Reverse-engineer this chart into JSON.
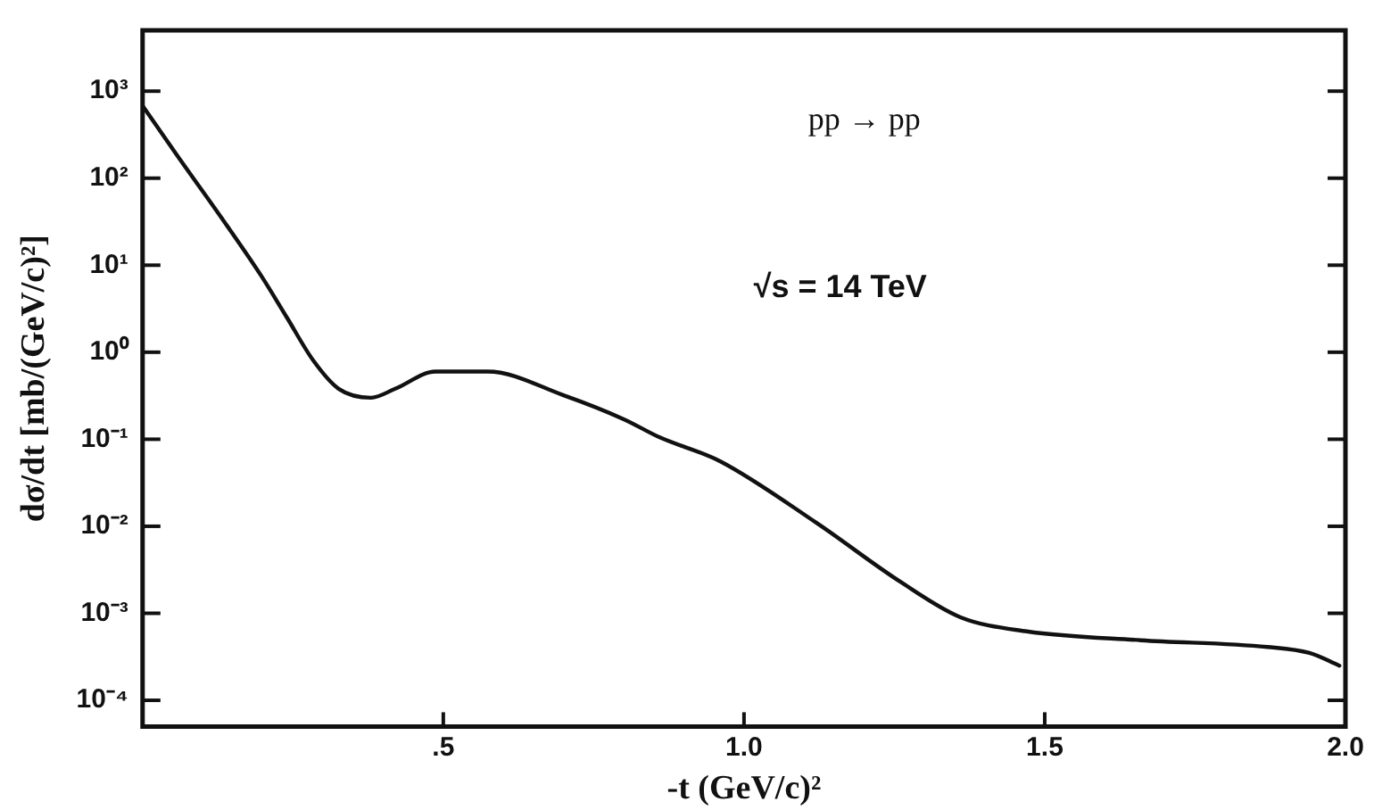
{
  "chart_data": {
    "type": "line",
    "xlabel": "-t (GeV/c)²",
    "ylabel": "dσ/dt [mb/(GeV/c)²]",
    "annotations": [
      "pp → pp",
      "√s = 14 TeV"
    ],
    "x": [
      0,
      0.058,
      0.13,
      0.197,
      0.24,
      0.284,
      0.326,
      0.38,
      0.42,
      0.487,
      0.574,
      0.7,
      0.8,
      0.86,
      0.96,
      1.12,
      1.26,
      1.36,
      1.47,
      1.66,
      1.87,
      1.94,
      1.99
    ],
    "series": [
      {
        "color": "#111111",
        "values": [
          680,
          180,
          36,
          7.6,
          2.5,
          0.8,
          0.38,
          0.3,
          0.38,
          0.6,
          0.6,
          0.32,
          0.17,
          0.105,
          0.056,
          0.011,
          0.0023,
          0.0009,
          0.00062,
          0.00049,
          0.00041,
          0.00035,
          0.00025
        ]
      }
    ],
    "log": "y",
    "xlim": [
      0,
      2
    ],
    "ylim": [
      5e-05,
      5000
    ],
    "xticks": [
      {
        "value": 0.5,
        "label": ".5"
      },
      {
        "value": 1,
        "label": "1.0"
      },
      {
        "value": 1.5,
        "label": "1.5"
      },
      {
        "value": 2,
        "label": "2.0"
      }
    ],
    "yticks": [
      {
        "value": 0.0001,
        "label": "10⁻⁴"
      },
      {
        "value": 0.001,
        "label": "10⁻³"
      },
      {
        "value": 0.01,
        "label": "10⁻²"
      },
      {
        "value": 0.1,
        "label": "10⁻¹"
      },
      {
        "value": 1,
        "label": "10⁰"
      },
      {
        "value": 10,
        "label": "10¹"
      },
      {
        "value": 100,
        "label": "10²"
      },
      {
        "value": 1000,
        "label": "10³"
      }
    ],
    "marker": "none",
    "line_style": "solid",
    "legend": false
  }
}
